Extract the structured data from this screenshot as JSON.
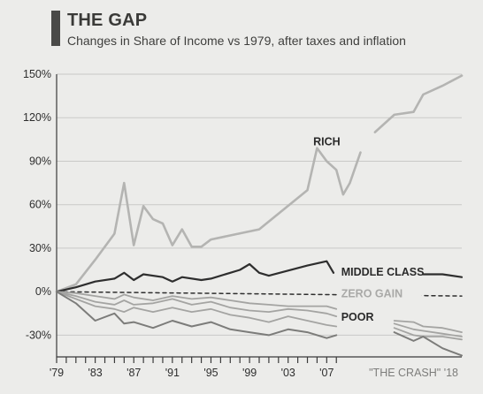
{
  "header": {
    "title": "THE GAP",
    "subtitle": "Changes in Share of Income vs 1979, after taxes and inflation"
  },
  "chart_data": {
    "type": "line",
    "title": "THE GAP",
    "subtitle": "Changes in Share of Income vs 1979, after taxes and inflation",
    "xlabel": "",
    "ylabel": "",
    "xlim": [
      1979,
      2018
    ],
    "ylim": [
      -45,
      150
    ],
    "y_ticks": [
      150,
      120,
      90,
      60,
      30,
      0,
      -30
    ],
    "y_tick_labels": [
      "150%",
      "120%",
      "90%",
      "60%",
      "30%",
      "0%",
      "-30%"
    ],
    "x_ticks": [
      1979,
      1983,
      1987,
      1991,
      1995,
      1999,
      2003,
      2007
    ],
    "x_tick_labels": [
      "'79",
      "'83",
      "'87",
      "'91",
      "'95",
      "'99",
      "'03",
      "'07"
    ],
    "crash_label": "\"THE CRASH\" '18",
    "grid": true,
    "colors": {
      "rich": "#b4b4b2",
      "middle": "#2e2e2e",
      "zero": "#2e2e2e",
      "poor": "#7c7c7a",
      "faint": "#a4a4a2",
      "grid": "#c9c9c7",
      "axis": "#3a3a3a"
    },
    "series": [
      {
        "name": "RICH",
        "role": "rich",
        "segments": [
          [
            [
              1979,
              0
            ],
            [
              1981,
              5
            ],
            [
              1983,
              22
            ],
            [
              1985,
              40
            ],
            [
              1986,
              75
            ],
            [
              1987,
              32
            ],
            [
              1988,
              59
            ],
            [
              1989,
              50
            ],
            [
              1990,
              47
            ],
            [
              1991,
              32
            ],
            [
              1992,
              43
            ],
            [
              1993,
              31
            ],
            [
              1994,
              31
            ],
            [
              1995,
              36
            ],
            [
              2000,
              43
            ],
            [
              2005,
              70
            ],
            [
              2006,
              99
            ],
            [
              2007,
              90
            ],
            [
              2008,
              84
            ],
            [
              2008.7,
              67
            ],
            [
              2009.4,
              75
            ],
            [
              2010.5,
              96
            ]
          ],
          [
            [
              2012,
              110
            ],
            [
              2014,
              122
            ],
            [
              2016,
              124
            ],
            [
              2017,
              136
            ],
            [
              2019,
              142
            ],
            [
              2021,
              149
            ]
          ]
        ]
      },
      {
        "name": "MIDDLE CLASS",
        "role": "middle",
        "segments": [
          [
            [
              1979,
              0
            ],
            [
              1981,
              3
            ],
            [
              1983,
              7
            ],
            [
              1985,
              9
            ],
            [
              1986,
              13
            ],
            [
              1987,
              8
            ],
            [
              1988,
              12
            ],
            [
              1990,
              10
            ],
            [
              1991,
              7
            ],
            [
              1992,
              10
            ],
            [
              1994,
              8
            ],
            [
              1995,
              9
            ],
            [
              1997,
              13
            ],
            [
              1998,
              15
            ],
            [
              1999,
              19
            ],
            [
              2000,
              13
            ],
            [
              2001,
              11
            ],
            [
              2005,
              18
            ],
            [
              2007,
              21
            ],
            [
              2007.7,
              13
            ]
          ],
          [
            [
              2017,
              12
            ],
            [
              2019,
              12
            ],
            [
              2021,
              10
            ]
          ]
        ]
      },
      {
        "name": "ZERO GAIN",
        "role": "zero",
        "segments": [
          [
            [
              1979,
              0
            ],
            [
              2021,
              -3
            ]
          ]
        ]
      },
      {
        "name": "",
        "role": "faint",
        "segments": [
          [
            [
              1979,
              0
            ],
            [
              1981,
              -1
            ],
            [
              1983,
              -3
            ],
            [
              1985,
              -5
            ],
            [
              1986,
              -2
            ],
            [
              1987,
              -4
            ],
            [
              1989,
              -6
            ],
            [
              1991,
              -3
            ],
            [
              1993,
              -5
            ],
            [
              1995,
              -4
            ],
            [
              1997,
              -6
            ],
            [
              1999,
              -8
            ],
            [
              2001,
              -9
            ],
            [
              2003,
              -10
            ],
            [
              2005,
              -10
            ],
            [
              2007,
              -10
            ],
            [
              2008,
              -12
            ]
          ],
          [
            [
              2014,
              -20
            ],
            [
              2016,
              -21
            ],
            [
              2017,
              -24
            ],
            [
              2019,
              -25
            ],
            [
              2021,
              -28
            ]
          ]
        ]
      },
      {
        "name": "",
        "role": "faint",
        "segments": [
          [
            [
              1979,
              0
            ],
            [
              1981,
              -3
            ],
            [
              1983,
              -7
            ],
            [
              1985,
              -9
            ],
            [
              1986,
              -6
            ],
            [
              1987,
              -9
            ],
            [
              1989,
              -8
            ],
            [
              1991,
              -5
            ],
            [
              1993,
              -9
            ],
            [
              1995,
              -7
            ],
            [
              1997,
              -11
            ],
            [
              1999,
              -13
            ],
            [
              2001,
              -14
            ],
            [
              2003,
              -12
            ],
            [
              2005,
              -13
            ],
            [
              2007,
              -15
            ],
            [
              2008,
              -17
            ]
          ],
          [
            [
              2014,
              -22
            ],
            [
              2016,
              -26
            ],
            [
              2017,
              -27
            ],
            [
              2019,
              -29
            ],
            [
              2021,
              -31
            ]
          ]
        ]
      },
      {
        "name": "",
        "role": "faint",
        "segments": [
          [
            [
              1979,
              0
            ],
            [
              1981,
              -5
            ],
            [
              1983,
              -10
            ],
            [
              1985,
              -12
            ],
            [
              1986,
              -14
            ],
            [
              1987,
              -11
            ],
            [
              1989,
              -14
            ],
            [
              1991,
              -11
            ],
            [
              1993,
              -14
            ],
            [
              1995,
              -12
            ],
            [
              1997,
              -16
            ],
            [
              1999,
              -18
            ],
            [
              2001,
              -21
            ],
            [
              2003,
              -17
            ],
            [
              2005,
              -20
            ],
            [
              2007,
              -23
            ],
            [
              2008,
              -24
            ]
          ],
          [
            [
              2014,
              -25
            ],
            [
              2016,
              -30
            ],
            [
              2017,
              -31
            ],
            [
              2019,
              -31
            ],
            [
              2021,
              -33
            ]
          ]
        ]
      },
      {
        "name": "POOR",
        "role": "poor",
        "segments": [
          [
            [
              1979,
              0
            ],
            [
              1981,
              -8
            ],
            [
              1983,
              -20
            ],
            [
              1985,
              -15
            ],
            [
              1986,
              -22
            ],
            [
              1987,
              -21
            ],
            [
              1989,
              -25
            ],
            [
              1991,
              -20
            ],
            [
              1993,
              -24
            ],
            [
              1995,
              -21
            ],
            [
              1997,
              -26
            ],
            [
              1999,
              -28
            ],
            [
              2001,
              -30
            ],
            [
              2003,
              -26
            ],
            [
              2005,
              -28
            ],
            [
              2007,
              -32
            ],
            [
              2008,
              -30
            ]
          ],
          [
            [
              2014,
              -28
            ],
            [
              2016,
              -34
            ],
            [
              2017,
              -31
            ],
            [
              2019,
              -39
            ],
            [
              2021,
              -44
            ]
          ]
        ]
      }
    ],
    "annotations": [
      {
        "text": "RICH",
        "style": "dark",
        "x": 2005.6,
        "y": 101
      },
      {
        "text": "MIDDLE CLASS",
        "style": "dark",
        "x": 2008.5,
        "y": 11
      },
      {
        "text": "ZERO GAIN",
        "style": "light",
        "x": 2008.5,
        "y": -4
      },
      {
        "text": "POOR",
        "style": "dark",
        "x": 2008.5,
        "y": -20
      }
    ]
  }
}
